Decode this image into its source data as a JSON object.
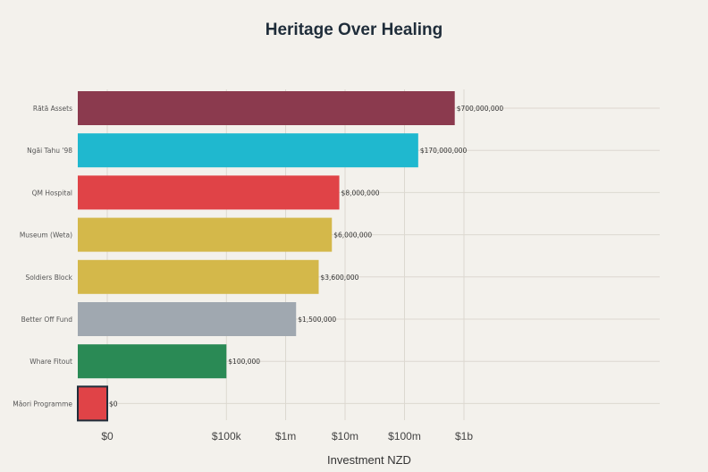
{
  "chart_data": {
    "type": "bar",
    "orientation": "horizontal",
    "title": "Heritage Over Healing",
    "xlabel": "Investment NZD",
    "ylabel": "",
    "x_scale": "symlog",
    "grid": true,
    "categories": [
      "Rātā Assets",
      "Ngāi Tahu '98",
      "QM Hospital",
      "Museum (Weta)",
      "Soldiers Block",
      "Better Off Fund",
      "Whare Fitout",
      "Māori Programme"
    ],
    "values": [
      700000000,
      170000000,
      8000000,
      6000000,
      3600000,
      1500000,
      100000,
      0
    ],
    "value_labels": [
      "$700,000,000",
      "$170,000,000",
      "$8,000,000",
      "$6,000,000",
      "$3,600,000",
      "$1,500,000",
      "$100,000",
      "$0"
    ],
    "colors": [
      "#8b3a4e",
      "#1fb8cf",
      "#e04347",
      "#d4b84a",
      "#d4b84a",
      "#a0a8b0",
      "#2a8a55",
      "#e04347"
    ],
    "highlight_index": 7,
    "x_ticks": [
      {
        "value": 0,
        "label": "$0"
      },
      {
        "value": 100000,
        "label": "$100k"
      },
      {
        "value": 1000000,
        "label": "$1m"
      },
      {
        "value": 10000000,
        "label": "$10m"
      },
      {
        "value": 100000000,
        "label": "$100m"
      },
      {
        "value": 1000000000,
        "label": "$1b"
      }
    ]
  }
}
